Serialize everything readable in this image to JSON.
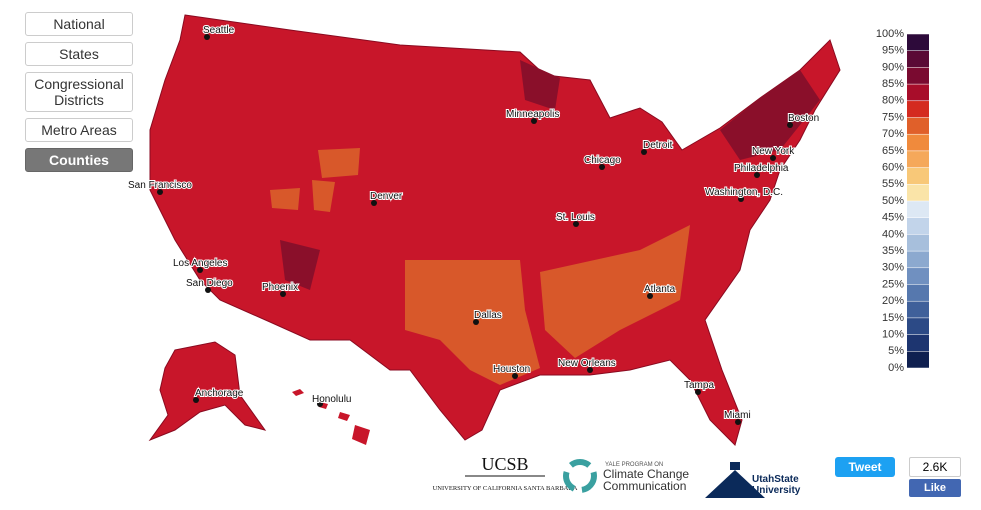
{
  "nav": {
    "buttons": [
      "National",
      "States",
      "Congressional Districts",
      "Metro Areas",
      "Counties"
    ]
  },
  "map": {
    "cities": [
      "Seattle",
      "San Francisco",
      "Los Angeles",
      "San Diego",
      "Phoenix",
      "Denver",
      "Minneapolis",
      "Chicago",
      "Detroit",
      "Boston",
      "New York",
      "Philadelphia",
      "Washington, D.C.",
      "St. Louis",
      "Dallas",
      "Houston",
      "New Orleans",
      "Atlanta",
      "Tampa",
      "Miami",
      "Anchorage",
      "Honolulu"
    ]
  },
  "legend": {
    "labels": [
      "100%",
      "95%",
      "90%",
      "85%",
      "80%",
      "75%",
      "70%",
      "65%",
      "60%",
      "55%",
      "50%",
      "45%",
      "40%",
      "35%",
      "30%",
      "25%",
      "20%",
      "15%",
      "10%",
      "5%",
      "0%"
    ],
    "colors": [
      "#2d0a3a",
      "#5a0a35",
      "#7a0a30",
      "#a80d2a",
      "#d42a20",
      "#e0602a",
      "#f08a3c",
      "#f5a85a",
      "#f8c878",
      "#fae4a8",
      "#dde8f4",
      "#c2d4ea",
      "#a7bfdc",
      "#8ca9cf",
      "#7090c0",
      "#5678ae",
      "#3f609a",
      "#2c4a86",
      "#1d3570",
      "#0f2050"
    ]
  },
  "logos": {
    "ucsb": "UCSB",
    "ucsb_sub": "UNIVERSITY OF CALIFORNIA SANTA BARBARA",
    "yale_small": "YALE PROGRAM ON",
    "yale_name": "Climate Change Communication",
    "utah": "UtahState University"
  },
  "social": {
    "tweet": "Tweet",
    "count": "2.6K",
    "like": "Like"
  }
}
